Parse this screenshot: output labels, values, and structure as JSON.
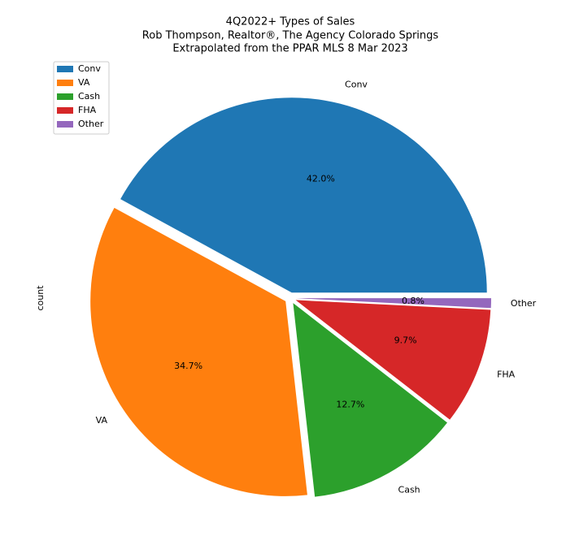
{
  "chart_data": {
    "type": "pie",
    "title": [
      "4Q2022+ Types of Sales",
      "Rob Thompson, Realtor®, The Agency Colorado Springs",
      "Extrapolated from the PPAR MLS 8 Mar 2023"
    ],
    "ylabel": "count",
    "categories": [
      "Conv",
      "VA",
      "Cash",
      "FHA",
      "Other"
    ],
    "values": [
      42.0,
      34.7,
      12.7,
      9.7,
      0.8
    ],
    "value_labels": [
      "42.0%",
      "34.7%",
      "12.7%",
      "9.7%",
      "0.8%"
    ],
    "colors": [
      "#1f77b4",
      "#ff7f0e",
      "#2ca02c",
      "#d62728",
      "#9467bd"
    ],
    "legend": "upper left"
  }
}
